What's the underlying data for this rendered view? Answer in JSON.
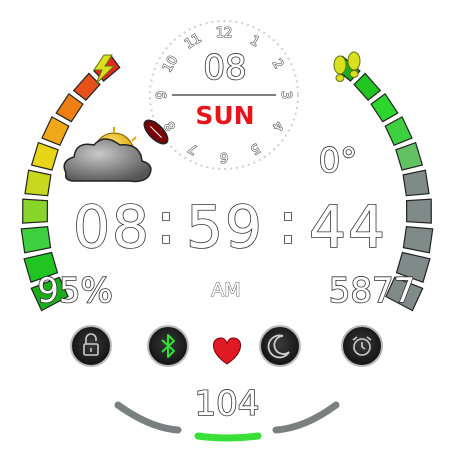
{
  "time": {
    "hours": "08",
    "minutes": "59",
    "seconds": "44",
    "separator": ":",
    "ampm": "AM"
  },
  "date": {
    "day_number": "08",
    "day_name": "SUN"
  },
  "dial_numbers": [
    "12",
    "1",
    "2",
    "3",
    "4",
    "5",
    "6",
    "7",
    "8",
    "9",
    "10",
    "11"
  ],
  "weather": {
    "temperature": "0°",
    "icon": "partly-cloudy-icon"
  },
  "battery": {
    "percent_text": "95%",
    "level_fraction": 0.95,
    "icon": "lightning-bolt-icon"
  },
  "steps": {
    "count": "5877",
    "progress_fraction": 0.45,
    "icon": "footprints-icon"
  },
  "heart_rate": {
    "value": "104",
    "icon": "heart-icon"
  },
  "buttons": [
    {
      "name": "lock",
      "icon": "lock-icon"
    },
    {
      "name": "bluetooth",
      "icon": "bluetooth-icon"
    },
    {
      "name": "do-not-disturb",
      "icon": "moon-icon"
    },
    {
      "name": "alarm",
      "icon": "alarm-clock-icon"
    }
  ],
  "colors": {
    "accent_red": "#e8141c",
    "bolt_yellow": "#d8e020",
    "heart_red": "#e01a24",
    "bluetooth_green": "#35e035",
    "gauge_green": "#2cd62c",
    "gauge_inactive": "#808a88"
  }
}
